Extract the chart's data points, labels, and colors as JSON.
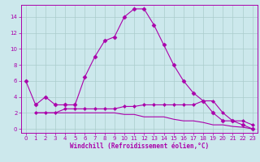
{
  "line1_x": [
    0,
    1,
    2,
    3,
    4,
    5,
    6,
    7,
    8,
    9,
    10,
    11,
    12,
    13,
    14,
    15,
    16,
    17,
    18,
    19,
    20,
    21,
    22,
    23
  ],
  "line1_y": [
    6,
    3,
    4,
    3,
    3,
    3,
    6.5,
    9,
    11,
    11.5,
    14,
    15,
    15,
    13,
    10.5,
    8,
    6,
    4.5,
    3.5,
    2,
    1,
    1,
    0.5,
    0
  ],
  "line2_x": [
    1,
    2,
    3,
    4,
    5,
    6,
    7,
    8,
    9,
    10,
    11,
    12,
    13,
    14,
    15,
    16,
    17,
    18,
    19,
    20,
    21,
    22,
    23
  ],
  "line2_y": [
    2,
    2,
    2,
    2.5,
    2.5,
    2.5,
    2.5,
    2.5,
    2.5,
    2.8,
    2.8,
    3,
    3,
    3,
    3,
    3,
    3,
    3.5,
    3.5,
    2,
    1,
    1,
    0.5
  ],
  "line3_x": [
    1,
    2,
    3,
    4,
    5,
    6,
    7,
    8,
    9,
    10,
    11,
    12,
    13,
    14,
    15,
    16,
    17,
    18,
    19,
    20,
    21,
    22,
    23
  ],
  "line3_y": [
    2,
    2,
    2,
    2,
    2,
    2,
    2,
    2,
    2,
    1.8,
    1.8,
    1.5,
    1.5,
    1.5,
    1.2,
    1,
    1,
    0.8,
    0.5,
    0.5,
    0.3,
    0.2,
    0
  ],
  "color": "#aa00aa",
  "bg_color": "#cce8ec",
  "grid_color": "#aacccc",
  "xlabel": "Windchill (Refroidissement éolien,°C)",
  "xlim": [
    -0.5,
    23.5
  ],
  "ylim": [
    -0.5,
    15.5
  ],
  "yticks": [
    0,
    2,
    4,
    6,
    8,
    10,
    12,
    14
  ],
  "xticks": [
    0,
    1,
    2,
    3,
    4,
    5,
    6,
    7,
    8,
    9,
    10,
    11,
    12,
    13,
    14,
    15,
    16,
    17,
    18,
    19,
    20,
    21,
    22,
    23
  ]
}
